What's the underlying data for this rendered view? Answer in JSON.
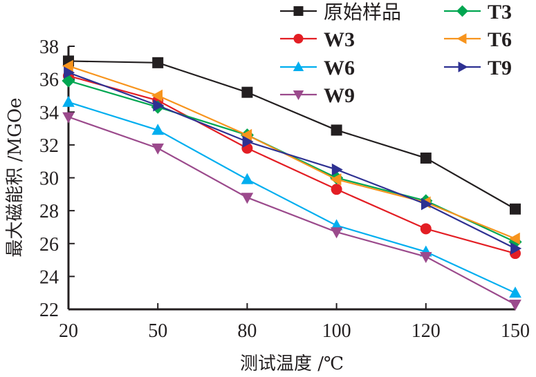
{
  "chart_data": {
    "type": "line",
    "title": "",
    "xlabel": "测试温度 /℃",
    "ylabel": "最大磁能积 /MGOe",
    "categories": [
      "20",
      "50",
      "80",
      "100",
      "120",
      "150"
    ],
    "x_scale": "categorical",
    "ylim": [
      22,
      38
    ],
    "yticks": [
      22,
      24,
      26,
      28,
      30,
      32,
      34,
      36,
      38
    ],
    "grid": false,
    "legend_position": "top-right",
    "series": [
      {
        "name": "原始样品",
        "color": "#231f20",
        "marker": "square",
        "values": [
          37.1,
          37.0,
          35.2,
          32.9,
          31.2,
          28.1
        ]
      },
      {
        "name": "W3",
        "color": "#e31e24",
        "marker": "circle",
        "values": [
          36.2,
          34.7,
          31.8,
          29.3,
          26.9,
          25.4
        ]
      },
      {
        "name": "W6",
        "color": "#00aeef",
        "marker": "triangle-up",
        "values": [
          34.6,
          32.9,
          29.9,
          27.1,
          25.5,
          23.0
        ]
      },
      {
        "name": "W9",
        "color": "#9b4a8c",
        "marker": "triangle-down",
        "values": [
          33.7,
          31.8,
          28.8,
          26.7,
          25.2,
          22.3
        ]
      },
      {
        "name": "T3",
        "color": "#00a651",
        "marker": "diamond",
        "values": [
          35.9,
          34.3,
          32.6,
          30.0,
          28.6,
          26.1
        ]
      },
      {
        "name": "T6",
        "color": "#f7941d",
        "marker": "triangle-left",
        "values": [
          36.8,
          35.0,
          32.6,
          29.9,
          28.5,
          26.3
        ]
      },
      {
        "name": "T9",
        "color": "#2e3192",
        "marker": "triangle-right",
        "values": [
          36.4,
          34.4,
          32.2,
          30.5,
          28.4,
          25.7
        ]
      }
    ]
  }
}
